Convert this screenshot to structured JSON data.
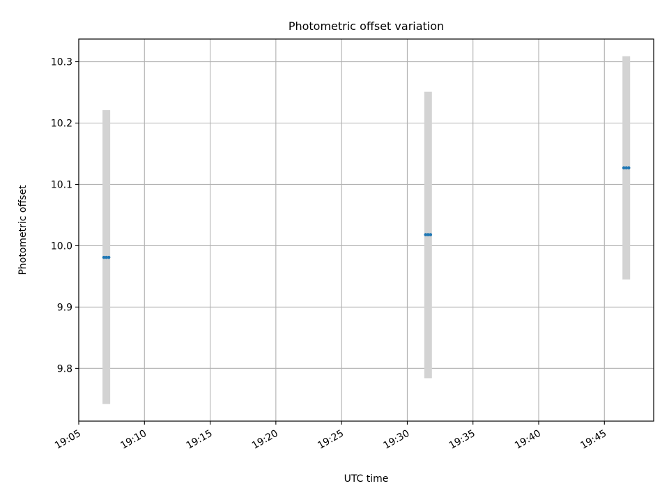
{
  "chart_data": {
    "type": "scatter",
    "title": "Photometric offset variation",
    "xlabel": "UTC time",
    "ylabel": "Photometric offset",
    "x_unit": "time (HH:MM)",
    "xlim": [
      "19:05",
      "19:48:45"
    ],
    "ylim": [
      9.714,
      10.337
    ],
    "x_ticks": [
      "19:05",
      "19:10",
      "19:15",
      "19:20",
      "19:25",
      "19:30",
      "19:35",
      "19:40",
      "19:45"
    ],
    "y_ticks": [
      9.8,
      9.9,
      10.0,
      10.1,
      10.2,
      10.3
    ],
    "y_tick_labels": [
      "9.8",
      "9.9",
      "10.0",
      "10.1",
      "10.2",
      "10.3"
    ],
    "grid": true,
    "legend": "none",
    "series": [
      {
        "marker_color": "#1f77b4",
        "errorbar_color": "#d3d3d3",
        "points": [
          {
            "x": "19:07:06",
            "y": 9.981,
            "yerr_low": 9.742,
            "yerr_high": 10.221
          },
          {
            "x": "19:31:35",
            "y": 10.018,
            "yerr_low": 9.784,
            "yerr_high": 10.251
          },
          {
            "x": "19:46:40",
            "y": 10.127,
            "yerr_low": 9.945,
            "yerr_high": 10.309
          }
        ]
      }
    ]
  }
}
